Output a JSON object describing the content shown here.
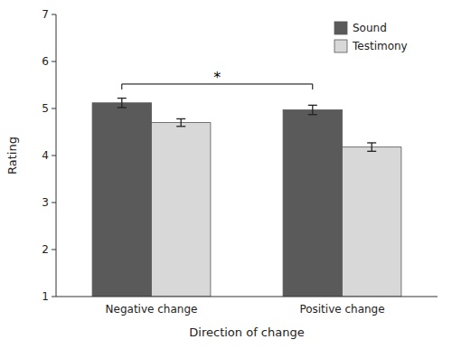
{
  "chart_data": {
    "type": "bar",
    "categories": [
      "Negative change",
      "Positive change"
    ],
    "series": [
      {
        "name": "Sound",
        "color": "#5a5a5a",
        "values": [
          5.12,
          4.97
        ],
        "errors": [
          0.1,
          0.1
        ]
      },
      {
        "name": "Testimony",
        "color": "#d8d8d8",
        "values": [
          4.7,
          4.18
        ],
        "errors": [
          0.08,
          0.09
        ]
      }
    ],
    "ylabel": "Rating",
    "xlabel": "Direction of change",
    "ylim": [
      1,
      7
    ],
    "yticks": [
      1,
      2,
      3,
      4,
      5,
      6,
      7
    ],
    "legend": "upper right",
    "grid": false,
    "annotations": [
      {
        "text": "*",
        "y": 5.52
      }
    ]
  }
}
